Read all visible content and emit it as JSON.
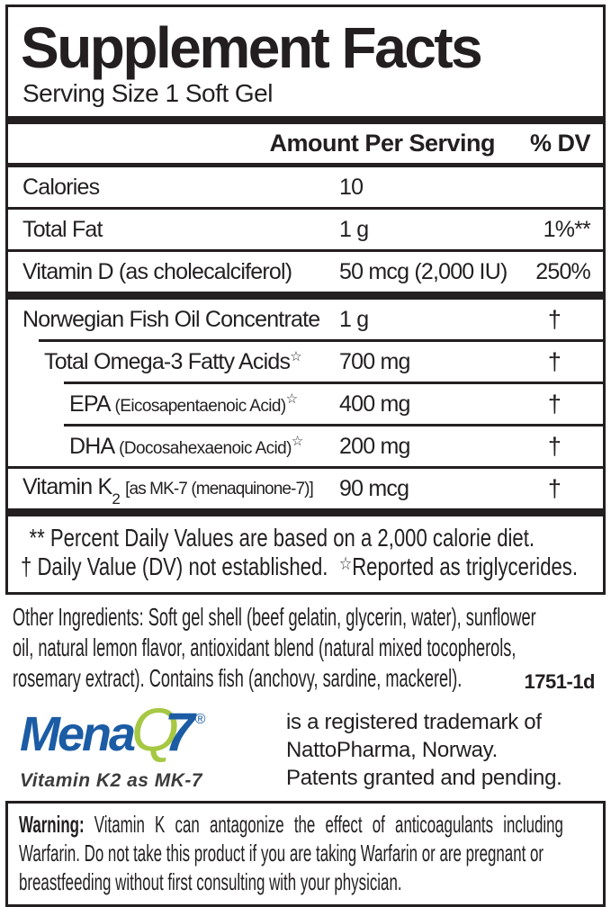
{
  "panel": {
    "title": "Supplement Facts",
    "serving_size": "Serving Size 1 Soft Gel",
    "columns": {
      "amount": "Amount Per Serving",
      "dv": "% DV"
    },
    "rows": [
      {
        "name": "Calories",
        "amount": "10",
        "dv": ""
      },
      {
        "name": "Total Fat",
        "amount": "1 g",
        "dv": "1%**"
      },
      {
        "name": "Vitamin D (as cholecalciferol)",
        "amount": "50 mcg (2,000 IU)",
        "dv": "250%"
      },
      {
        "name": "Norwegian Fish Oil Concentrate",
        "amount": "1 g",
        "dv": "†"
      },
      {
        "name": "Total Omega-3 Fatty Acids",
        "star": "☆",
        "amount": "700 mg",
        "dv": "†"
      },
      {
        "name": "EPA",
        "paren": "(Eicosapentaenoic Acid)",
        "star": "☆",
        "amount": "400 mg",
        "dv": "†"
      },
      {
        "name": "DHA",
        "paren": "(Docosahexaenoic Acid)",
        "star": "☆",
        "amount": "200 mg",
        "dv": "†"
      },
      {
        "name": "Vitamin K",
        "subscript": "2",
        "bracket": "[as MK-7 (menaquinone-7)]",
        "amount": "90 mcg",
        "dv": "†"
      }
    ],
    "footnotes": {
      "line1": "** Percent Daily Values are based on a 2,000 calorie diet.",
      "line2_dagger": "† Daily Value (DV) not established.",
      "line2_star": "☆",
      "line2_text": "Reported as triglycerides."
    }
  },
  "other_ingredients": {
    "lines": [
      "Other Ingredients: Soft gel shell (beef gelatin, glycerin, water), sunflower",
      "oil, natural lemon flavor, antioxidant blend (natural mixed tocopherols,",
      "rosemary extract). Contains fish (anchovy, sardine, mackerel)."
    ]
  },
  "item_code": "1751-1d",
  "logo": {
    "mena": "Mena",
    "q": "Q",
    "seven": "7",
    "registered": "®",
    "tagline": "Vitamin K2 as MK-7",
    "colors": {
      "blue": "#1b5ca5",
      "green": "#a6c843",
      "tagline_gray": "#3c3c3c"
    },
    "trademark": [
      "is a registered trademark of",
      "NattoPharma, Norway.",
      "Patents granted and pending."
    ]
  },
  "warning": {
    "label": "Warning:",
    "lines": [
      "Vitamin K can antagonize the effect of anticoagulants including",
      "Warfarin. Do not take this product if you are taking Warfarin or are pregnant or",
      "breastfeeding without first consulting with your physician."
    ]
  },
  "colors": {
    "text": "#231f20",
    "background": "#ffffff"
  }
}
